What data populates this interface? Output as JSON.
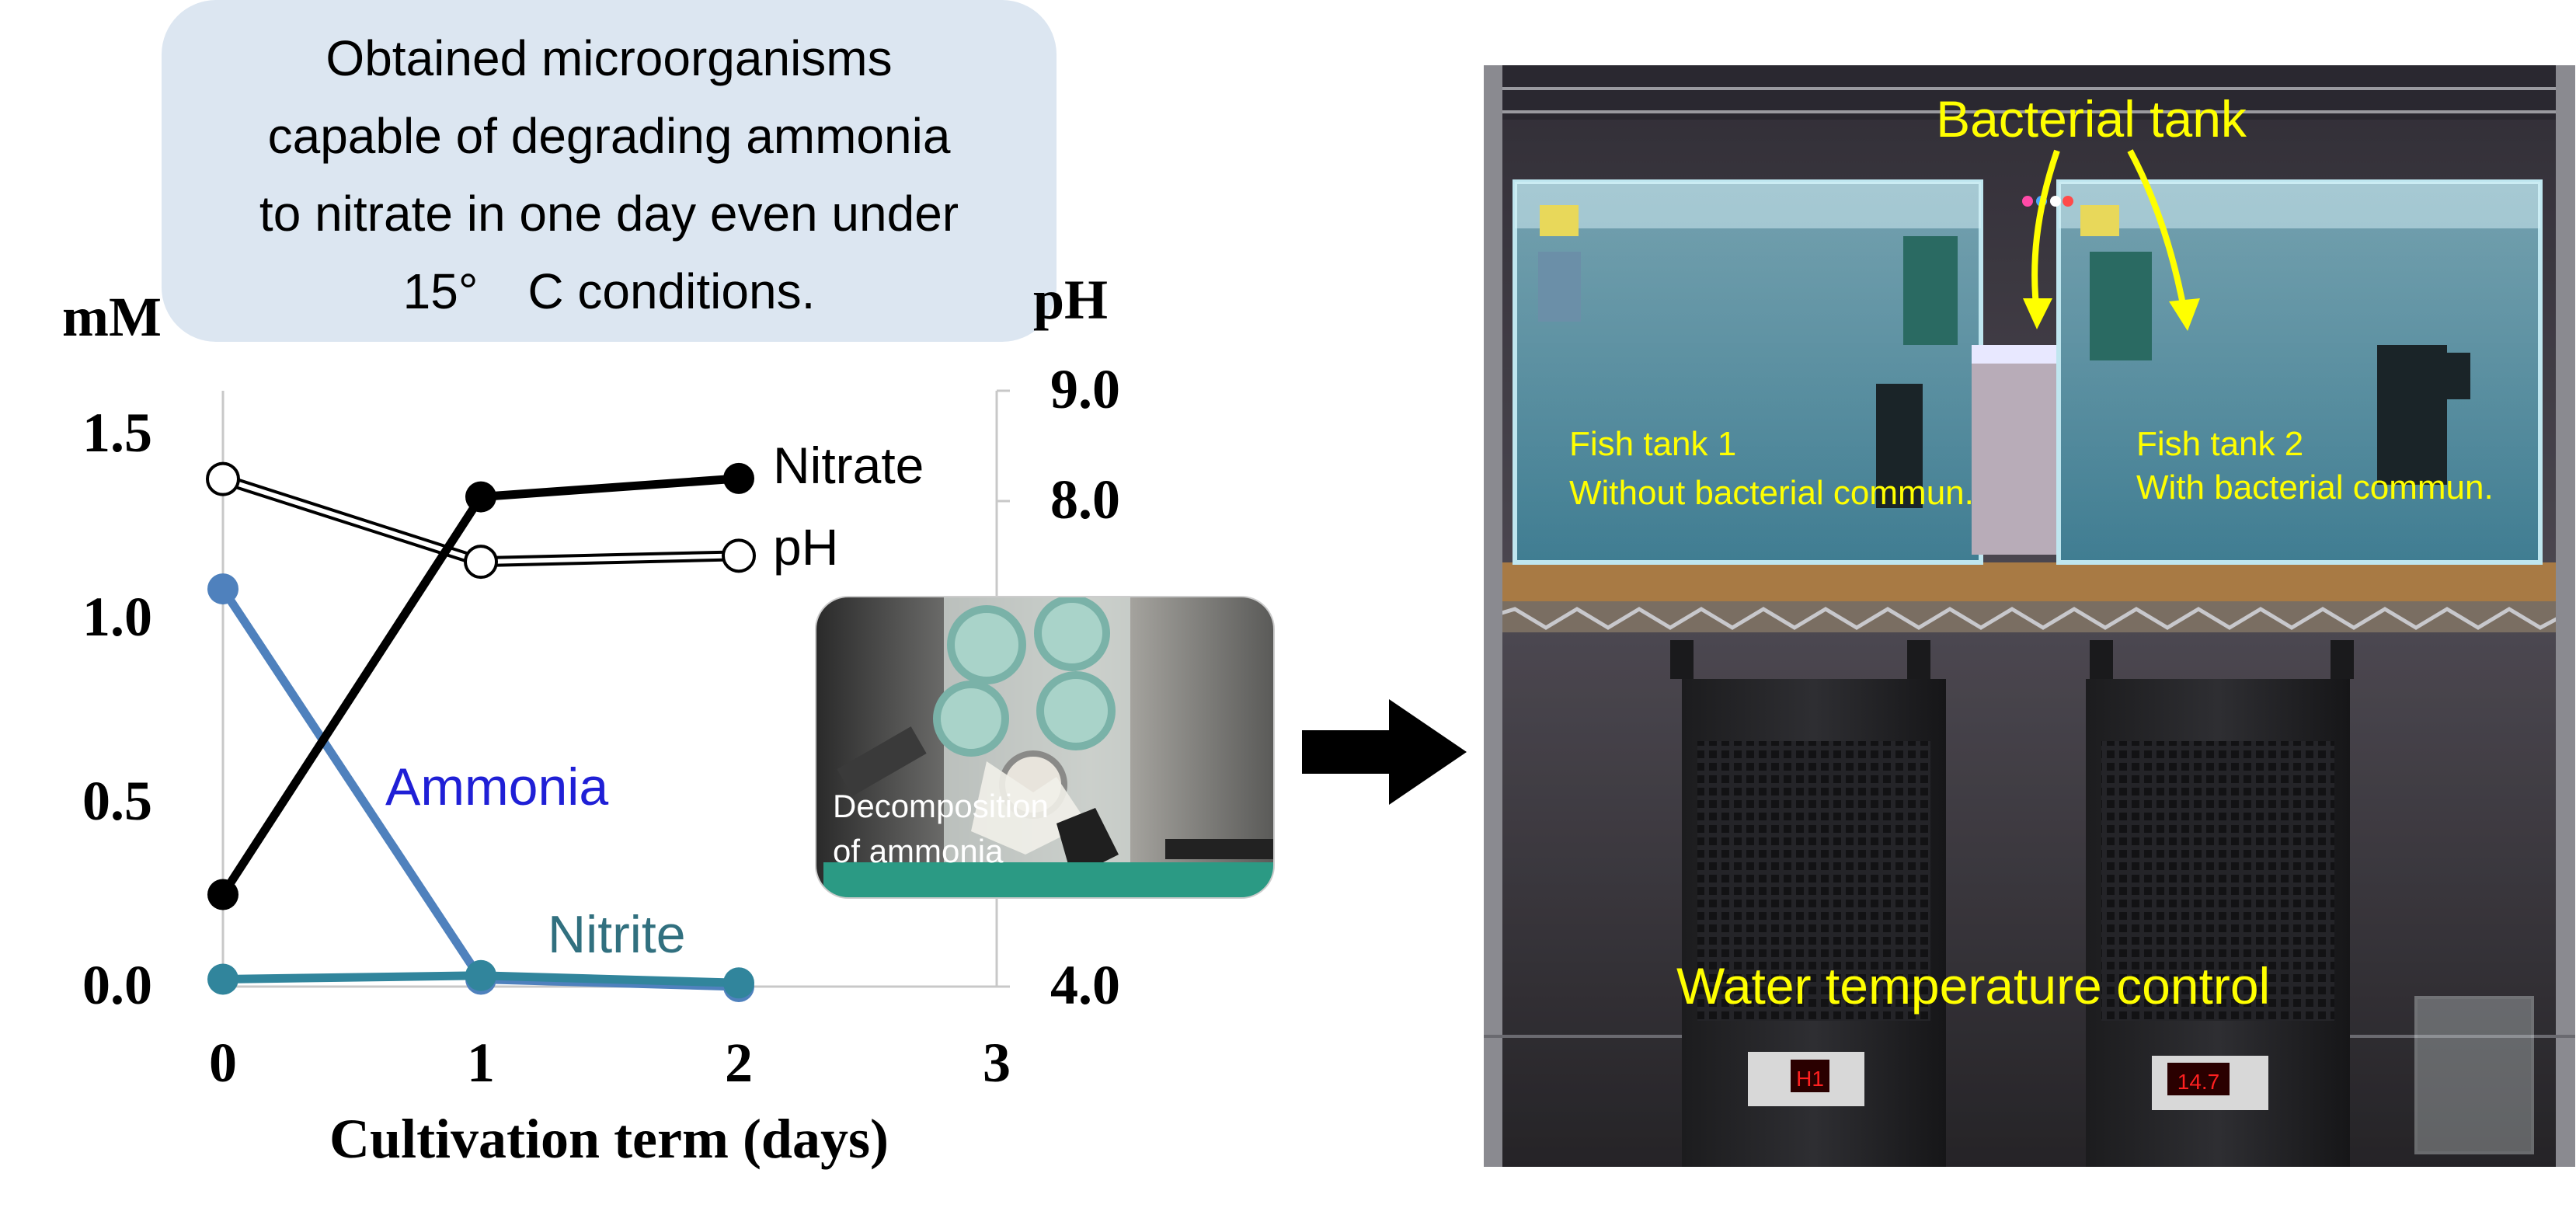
{
  "callout": {
    "lines": [
      "Obtained microorganisms",
      "capable of degrading ammonia",
      "to nitrate in one day even under",
      "15°　C conditions."
    ],
    "fill": "#dce6f1"
  },
  "chart_data": {
    "type": "line",
    "xlabel": "Cultivation term (days)",
    "y_left_label": "mM",
    "y_right_label": "pH",
    "x": [
      0,
      1,
      2
    ],
    "x_ticks": [
      "0",
      "1",
      "2",
      "3"
    ],
    "xlim": [
      0,
      3
    ],
    "y_left_ticks": [
      "0.0",
      "0.5",
      "1.0",
      "1.5"
    ],
    "ylim_left": [
      0,
      1.6
    ],
    "y_right_ticks": [
      "4.0",
      "8.0",
      "9.0"
    ],
    "series": [
      {
        "name": "Nitrate",
        "axis": "left",
        "values": [
          0.25,
          1.33,
          1.38
        ],
        "color": "#000000",
        "marker": "filled"
      },
      {
        "name": "pH",
        "axis": "right",
        "values": [
          8.2,
          7.5,
          7.55
        ],
        "color": "#000000",
        "marker": "open"
      },
      {
        "name": "Ammonia",
        "axis": "left",
        "values": [
          1.08,
          0.02,
          0.0
        ],
        "color": "#4f81bd",
        "label_color": "#1f1fd6",
        "marker": "filled"
      },
      {
        "name": "Nitrite",
        "axis": "left",
        "values": [
          0.02,
          0.03,
          0.01
        ],
        "color": "#31859c",
        "label_color": "#31707f",
        "marker": "filled"
      }
    ]
  },
  "inset_photo": {
    "caption": [
      "Decomposition",
      "of ammonia"
    ]
  },
  "photo": {
    "labels": {
      "bacterial_tank": "Bacterial tank",
      "fish_tank_1": [
        "Fish tank 1",
        "Without bacterial commun."
      ],
      "fish_tank_2": [
        "Fish tank 2",
        "With bacterial commun."
      ],
      "water_temp": "Water temperature control",
      "display_1": "H1",
      "display_2": "14.7"
    },
    "label_color": "#ffff00"
  }
}
